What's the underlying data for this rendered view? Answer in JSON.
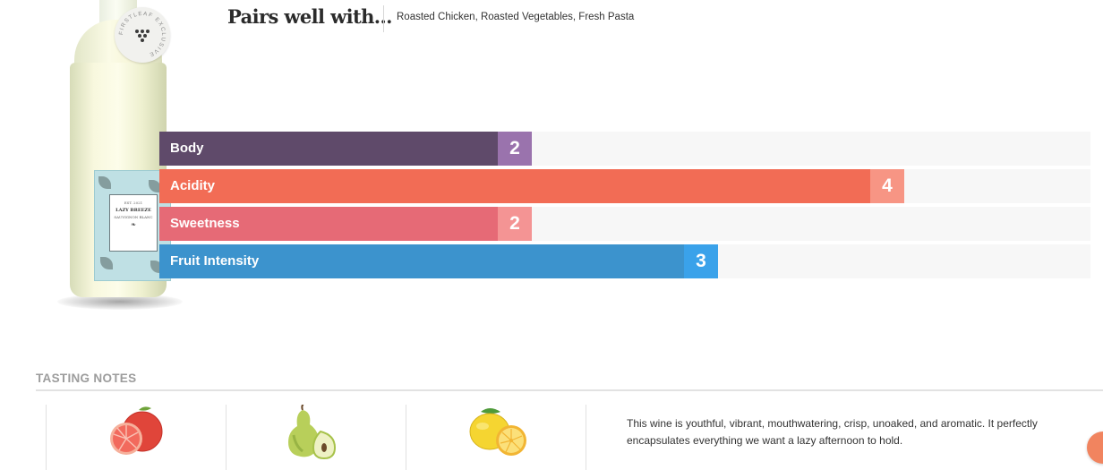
{
  "product": {
    "badge_text": "FIRSTLEAF EXCLUSIVE",
    "label_year": "EST. 2021",
    "label_name": "LAZY BREEZE",
    "label_variety": "SAUVIGNON BLANC"
  },
  "pairs": {
    "title": "Pairs well with...",
    "foods": "Roasted Chicken, Roasted Vegetables, Fresh Pasta"
  },
  "attributes": [
    {
      "label": "Body",
      "value": "2",
      "scale_max": 5,
      "color": "#5f4a6a",
      "value_color": "#9a73ad"
    },
    {
      "label": "Acidity",
      "value": "4",
      "scale_max": 5,
      "color": "#f26c55",
      "value_color": "#f79584"
    },
    {
      "label": "Sweetness",
      "value": "2",
      "scale_max": 5,
      "color": "#e66a76",
      "value_color": "#f49494"
    },
    {
      "label": "Fruit Intensity",
      "value": "3",
      "scale_max": 5,
      "color": "#3c93cd",
      "value_color": "#3aa2ea"
    }
  ],
  "tasting": {
    "title": "TASTING NOTES",
    "notes": [
      {
        "icon": "grapefruit-icon"
      },
      {
        "icon": "pear-icon"
      },
      {
        "icon": "lemon-icon"
      }
    ],
    "description": "This wine is youthful, vibrant, mouthwatering, crisp, unoaked, and aromatic. It perfectly encapsulates everything we want a lazy afternoon to hold."
  }
}
